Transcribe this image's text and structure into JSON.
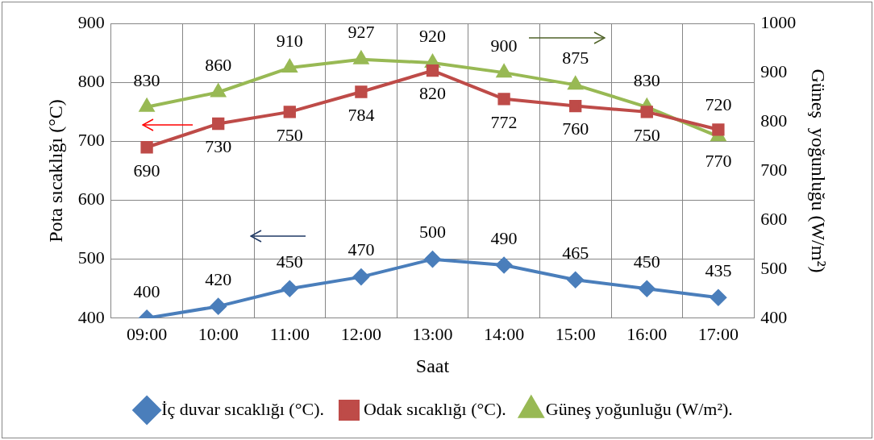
{
  "chart_data": {
    "type": "line",
    "xlabel": "Saat",
    "ylabel": "Pota sıcaklığı (°C)",
    "y2label": "Güneş  yoğunluğu (W/m²)",
    "categories": [
      "09:00",
      "10:00",
      "11:00",
      "12:00",
      "13:00",
      "14:00",
      "15:00",
      "16:00",
      "17:00"
    ],
    "series": [
      {
        "name": "İç duvar sıcaklığı (°C).",
        "color": "#4a7ebb",
        "marker": "diamond",
        "values": [
          400,
          420,
          450,
          470,
          500,
          490,
          465,
          450,
          435
        ]
      },
      {
        "name": "Odak sıcaklığı (°C).",
        "color": "#be4b48",
        "marker": "square",
        "values": [
          690,
          730,
          750,
          784,
          820,
          772,
          760,
          750,
          720
        ]
      },
      {
        "name": "Güneş yoğunluğu (W/m²).",
        "color": "#98b954",
        "marker": "triangle",
        "axis": "y2",
        "values": [
          830,
          860,
          910,
          927,
          920,
          900,
          875,
          830,
          770
        ]
      }
    ],
    "ylim": [
      400,
      900
    ],
    "yticks": [
      400,
      500,
      600,
      700,
      800,
      900
    ],
    "y2lim": [
      400,
      1000
    ],
    "y2ticks": [
      400,
      500,
      600,
      700,
      800,
      900,
      1000
    ],
    "grid": true,
    "legend": "bottom",
    "data_labels": true
  }
}
